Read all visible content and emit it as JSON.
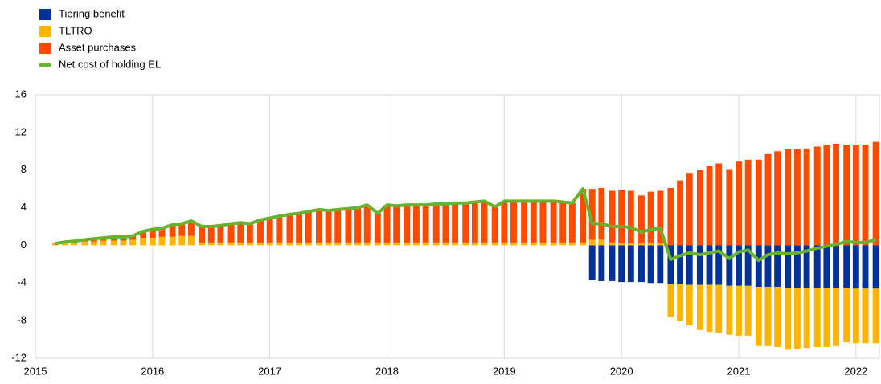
{
  "chart_data": {
    "type": "bar",
    "x": [
      2015.17,
      2015.25,
      2015.33,
      2015.42,
      2015.5,
      2015.58,
      2015.67,
      2015.75,
      2015.83,
      2015.92,
      2016.0,
      2016.08,
      2016.17,
      2016.25,
      2016.33,
      2016.42,
      2016.5,
      2016.58,
      2016.67,
      2016.75,
      2016.83,
      2016.92,
      2017.0,
      2017.08,
      2017.17,
      2017.25,
      2017.33,
      2017.42,
      2017.5,
      2017.58,
      2017.67,
      2017.75,
      2017.83,
      2017.92,
      2018.0,
      2018.08,
      2018.17,
      2018.25,
      2018.33,
      2018.42,
      2018.5,
      2018.58,
      2018.67,
      2018.75,
      2018.83,
      2018.92,
      2019.0,
      2019.08,
      2019.17,
      2019.25,
      2019.33,
      2019.42,
      2019.5,
      2019.58,
      2019.67,
      2019.75,
      2019.83,
      2019.92,
      2020.0,
      2020.08,
      2020.17,
      2020.25,
      2020.33,
      2020.42,
      2020.5,
      2020.58,
      2020.67,
      2020.75,
      2020.83,
      2020.92,
      2021.0,
      2021.08,
      2021.17,
      2021.25,
      2021.33,
      2021.42,
      2021.5,
      2021.58,
      2021.67,
      2021.75,
      2021.83,
      2021.92,
      2022.0,
      2022.08,
      2022.17
    ],
    "series": [
      {
        "name": "Tiering benefit",
        "color": "#003299",
        "values": [
          null,
          null,
          null,
          null,
          null,
          null,
          null,
          null,
          null,
          null,
          null,
          null,
          null,
          null,
          null,
          null,
          null,
          null,
          null,
          null,
          null,
          null,
          null,
          null,
          null,
          null,
          null,
          null,
          null,
          null,
          null,
          null,
          null,
          null,
          null,
          null,
          null,
          null,
          null,
          null,
          null,
          null,
          null,
          null,
          null,
          null,
          null,
          null,
          null,
          null,
          null,
          null,
          null,
          null,
          null,
          -3.7,
          -3.8,
          -3.8,
          -3.9,
          -3.9,
          -3.9,
          -4.0,
          -4.0,
          -4.1,
          -4.1,
          -4.2,
          -4.2,
          -4.2,
          -4.2,
          -4.3,
          -4.3,
          -4.3,
          -4.4,
          -4.4,
          -4.4,
          -4.5,
          -4.5,
          -4.5,
          -4.5,
          -4.5,
          -4.5,
          -4.5,
          -4.6,
          -4.6,
          -4.6
        ]
      },
      {
        "name": "TLTRO",
        "color": "#ffb400",
        "values": [
          0.2,
          0.3,
          0.3,
          0.4,
          0.4,
          0.5,
          0.5,
          0.5,
          0.6,
          0.8,
          0.8,
          0.9,
          0.9,
          1.0,
          1.0,
          0.3,
          0.3,
          0.3,
          0.3,
          0.3,
          0.3,
          0.3,
          0.3,
          0.3,
          0.3,
          0.3,
          0.3,
          0.3,
          0.3,
          0.3,
          0.3,
          0.3,
          0.3,
          0.3,
          0.3,
          0.3,
          0.3,
          0.3,
          0.3,
          0.3,
          0.3,
          0.3,
          0.3,
          0.3,
          0.3,
          0.3,
          0.3,
          0.3,
          0.3,
          0.3,
          0.3,
          0.3,
          0.3,
          0.3,
          0.3,
          0.6,
          0.6,
          0.3,
          0.2,
          0.2,
          0.2,
          0.2,
          0.2,
          -3.5,
          -3.9,
          -4.3,
          -4.8,
          -5.0,
          -5.1,
          -5.2,
          -5.3,
          -5.3,
          -6.3,
          -6.3,
          -6.4,
          -6.6,
          -6.5,
          -6.4,
          -6.3,
          -6.3,
          -6.2,
          -5.8,
          -5.8,
          -5.8,
          -5.8
        ]
      },
      {
        "name": "Asset purchases",
        "color": "#ff4b00",
        "values": [
          0.05,
          0.05,
          0.15,
          0.2,
          0.3,
          0.3,
          0.4,
          0.4,
          0.4,
          0.7,
          0.9,
          0.9,
          1.3,
          1.3,
          1.6,
          1.7,
          1.7,
          1.8,
          2.0,
          2.1,
          2.0,
          2.4,
          2.6,
          2.8,
          3.0,
          3.1,
          3.3,
          3.5,
          3.4,
          3.5,
          3.6,
          3.7,
          4.0,
          3.1,
          4.0,
          3.9,
          4.0,
          4.0,
          4.0,
          4.1,
          4.1,
          4.2,
          4.2,
          4.3,
          4.4,
          3.8,
          4.4,
          4.4,
          4.4,
          4.4,
          4.4,
          4.4,
          4.3,
          4.2,
          5.7,
          5.4,
          5.5,
          5.5,
          5.7,
          5.6,
          5.1,
          5.5,
          5.6,
          6.1,
          6.9,
          7.7,
          8.0,
          8.4,
          8.7,
          8.1,
          8.9,
          9.1,
          9.1,
          9.7,
          10.0,
          10.2,
          10.2,
          10.3,
          10.5,
          10.7,
          10.8,
          10.7,
          10.7,
          10.7,
          11.0
        ]
      },
      {
        "name": "Net cost of holding EL",
        "color": "#65b32e",
        "kind": "line",
        "values": [
          0.2,
          0.35,
          0.45,
          0.6,
          0.7,
          0.8,
          0.9,
          0.9,
          1.0,
          1.5,
          1.7,
          1.8,
          2.2,
          2.3,
          2.6,
          2.0,
          2.0,
          2.1,
          2.3,
          2.4,
          2.3,
          2.7,
          2.9,
          3.1,
          3.3,
          3.4,
          3.6,
          3.8,
          3.7,
          3.8,
          3.9,
          4.0,
          4.3,
          3.4,
          4.3,
          4.2,
          4.3,
          4.3,
          4.3,
          4.4,
          4.4,
          4.5,
          4.5,
          4.6,
          4.7,
          4.1,
          4.7,
          4.7,
          4.7,
          4.7,
          4.7,
          4.7,
          4.6,
          4.5,
          6.0,
          2.3,
          2.3,
          2.0,
          2.0,
          1.9,
          1.4,
          1.7,
          1.8,
          -1.5,
          -1.1,
          -0.8,
          -1.0,
          -0.8,
          -0.6,
          -1.4,
          -0.7,
          -0.5,
          -1.6,
          -1.0,
          -0.8,
          -0.9,
          -0.8,
          -0.6,
          -0.3,
          -0.1,
          0.1,
          0.4,
          0.3,
          0.3,
          0.6
        ]
      }
    ],
    "xlim": [
      2015,
      2022.2
    ],
    "xticks": [
      2015,
      2016,
      2017,
      2018,
      2019,
      2020,
      2021,
      2022
    ],
    "ylim": [
      -12,
      16
    ],
    "yticks": [
      -12,
      -8,
      -4,
      0,
      4,
      8,
      12,
      16
    ],
    "grid": true,
    "stacked": true,
    "legend": "top-left"
  }
}
